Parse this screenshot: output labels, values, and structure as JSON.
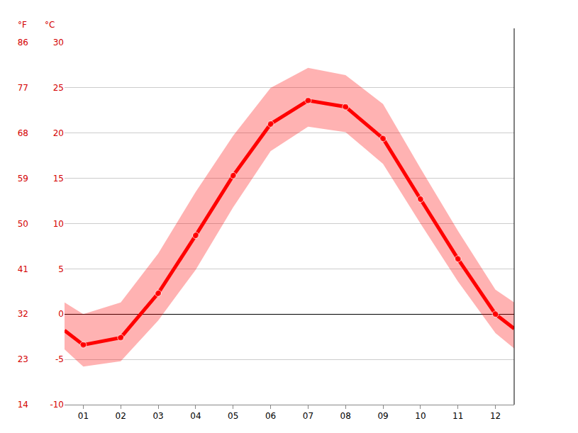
{
  "chart_data": {
    "type": "line",
    "x": [
      0.5,
      1,
      2,
      3,
      4,
      5,
      6,
      7,
      8,
      9,
      10,
      11,
      12,
      12.5
    ],
    "values": [
      -1.8,
      -3.4,
      -2.6,
      2.3,
      8.7,
      15.3,
      21.0,
      23.6,
      22.9,
      19.4,
      12.7,
      6.1,
      0.0,
      -1.6
    ],
    "range_high": [
      1.3,
      0.0,
      1.3,
      6.7,
      13.5,
      19.7,
      25.0,
      27.2,
      26.4,
      23.2,
      16.1,
      9.2,
      2.7,
      1.3
    ],
    "range_low": [
      -3.9,
      -5.8,
      -5.2,
      -0.7,
      4.9,
      11.8,
      18.0,
      20.7,
      20.1,
      16.6,
      10.0,
      3.6,
      -2.1,
      -3.8
    ],
    "color": "#ff0000",
    "marker": "circle",
    "xlim": [
      0.5,
      12.5
    ],
    "xticks": [
      {
        "value": 1,
        "label": "01"
      },
      {
        "value": 2,
        "label": "02"
      },
      {
        "value": 3,
        "label": "03"
      },
      {
        "value": 4,
        "label": "04"
      },
      {
        "value": 5,
        "label": "05"
      },
      {
        "value": 6,
        "label": "06"
      },
      {
        "value": 7,
        "label": "07"
      },
      {
        "value": 8,
        "label": "08"
      },
      {
        "value": 9,
        "label": "09"
      },
      {
        "value": 10,
        "label": "10"
      },
      {
        "value": 11,
        "label": "11"
      },
      {
        "value": 12,
        "label": "12"
      }
    ],
    "y_title": "°C",
    "ylim": [
      -10,
      30
    ],
    "yticks": [
      -10,
      -5,
      0,
      5,
      10,
      15,
      20,
      25,
      30
    ],
    "y2_title": "°F",
    "y2lim": [
      14,
      86
    ],
    "y2ticks": [
      14,
      23,
      32,
      41,
      50,
      59,
      68,
      77,
      86
    ],
    "grid": true
  }
}
